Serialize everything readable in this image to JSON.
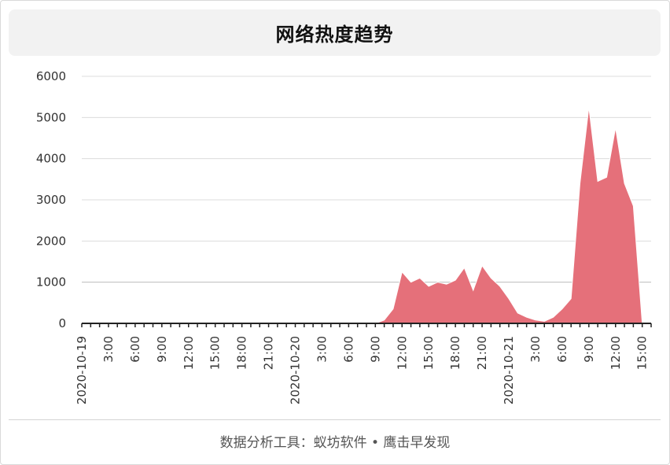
{
  "header": {
    "title": "网络热度趋势"
  },
  "footer": {
    "text": "数据分析工具：蚁坊软件 • 鹰击早发现"
  },
  "chart_data": {
    "type": "area",
    "title": "网络热度趋势",
    "xlabel": "",
    "ylabel": "",
    "ylim": [
      0,
      6000
    ],
    "yticks": [
      0,
      1000,
      2000,
      3000,
      4000,
      5000,
      6000
    ],
    "grid": true,
    "legend": "none",
    "color": "#e5707a",
    "x_tick_labels": [
      "2020-10-19",
      "3:00",
      "6:00",
      "9:00",
      "12:00",
      "15:00",
      "18:00",
      "21:00",
      "2020-10-20",
      "3:00",
      "6:00",
      "9:00",
      "12:00",
      "15:00",
      "18:00",
      "21:00",
      "2020-10-21",
      "3:00",
      "6:00",
      "9:00",
      "12:00",
      "15:00"
    ],
    "x_hours": [
      0,
      1,
      2,
      3,
      4,
      5,
      6,
      7,
      8,
      9,
      10,
      11,
      12,
      13,
      14,
      15,
      16,
      17,
      18,
      19,
      20,
      21,
      22,
      23,
      24,
      25,
      26,
      27,
      28,
      29,
      30,
      31,
      32,
      33,
      34,
      35,
      36,
      37,
      38,
      39,
      40,
      41,
      42,
      43,
      44,
      45,
      46,
      47,
      48,
      49,
      50,
      51,
      52,
      53,
      54,
      55,
      56,
      57,
      58,
      59,
      60,
      61,
      62,
      63,
      64
    ],
    "values": [
      0,
      0,
      0,
      0,
      0,
      0,
      0,
      0,
      0,
      0,
      0,
      0,
      0,
      0,
      0,
      0,
      0,
      0,
      0,
      0,
      0,
      0,
      0,
      0,
      0,
      0,
      0,
      0,
      0,
      0,
      0,
      0,
      0,
      0,
      80,
      350,
      1250,
      1000,
      1100,
      900,
      1000,
      950,
      1050,
      1350,
      800,
      1400,
      1100,
      900,
      600,
      250,
      150,
      80,
      50,
      150,
      350,
      600,
      3400,
      5250,
      3450,
      3550,
      4750,
      3400,
      2850,
      0,
      0
    ],
    "start_label": "2020-10-19 0:00"
  }
}
